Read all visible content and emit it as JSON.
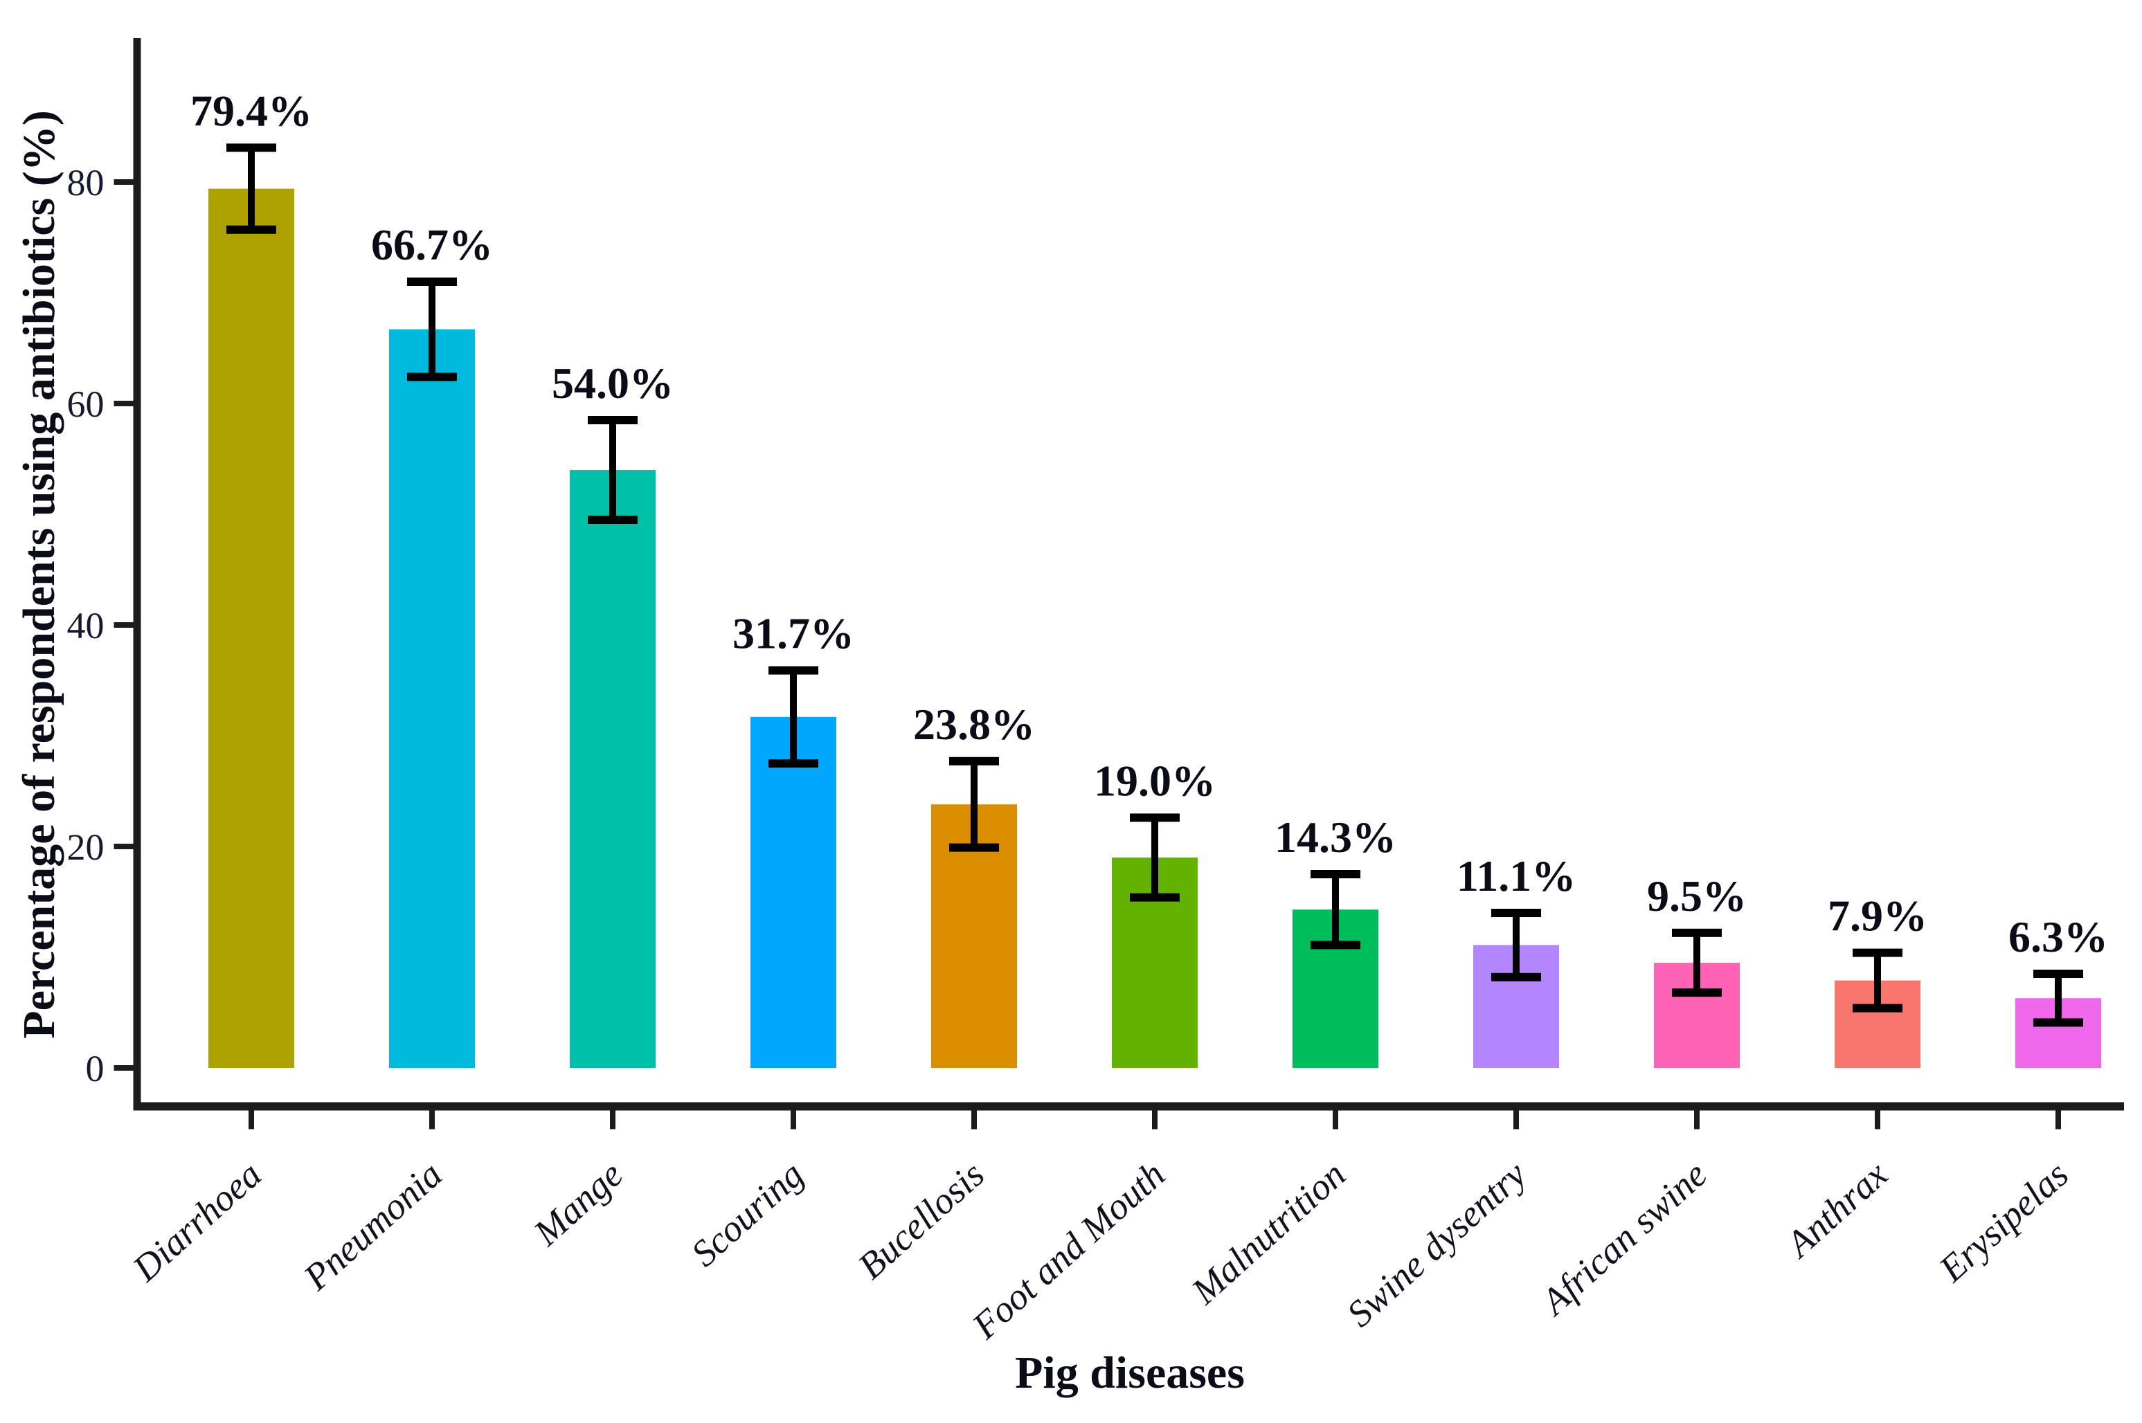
{
  "chart_data": {
    "type": "bar",
    "title": "",
    "xlabel": "Pig diseases",
    "ylabel": "Percentage of respondents using antibiotics (%)",
    "categories": [
      "Diarrhoea",
      "Pneumonia",
      "Mange",
      "Scouring",
      "Bucellosis",
      "Foot and Mouth",
      "Malnutrition",
      "Swine dysentry",
      "African swine",
      "Anthrax",
      "Erysipelas"
    ],
    "values": [
      79.4,
      66.7,
      54.0,
      31.7,
      23.8,
      19.0,
      14.3,
      11.1,
      9.5,
      7.9,
      6.3
    ],
    "value_labels": [
      "79.4%",
      "66.7%",
      "54.0%",
      "31.7%",
      "23.8%",
      "19.0%",
      "14.3%",
      "11.1%",
      "9.5%",
      "7.9%",
      "6.3%"
    ],
    "error_bars": [
      3.7,
      4.3,
      4.5,
      4.2,
      3.9,
      3.6,
      3.2,
      2.9,
      2.7,
      2.5,
      2.2
    ],
    "bar_colors": [
      "#AEA200",
      "#00BADE",
      "#00C1A7",
      "#00A6FF",
      "#DB8E00",
      "#64B200",
      "#00BD5C",
      "#B385FF",
      "#FF63B6",
      "#F8766D",
      "#EF67EB"
    ],
    "y_ticks": [
      "0",
      "20",
      "40",
      "60",
      "80"
    ],
    "y_tick_values": [
      0,
      20,
      40,
      60,
      80
    ],
    "ylim": [
      0,
      93
    ],
    "grid": false,
    "legend_position": "none",
    "error_bar_color": "#000000",
    "axis_line_color": "#1c1c1c",
    "background_color": "#ffffff"
  }
}
